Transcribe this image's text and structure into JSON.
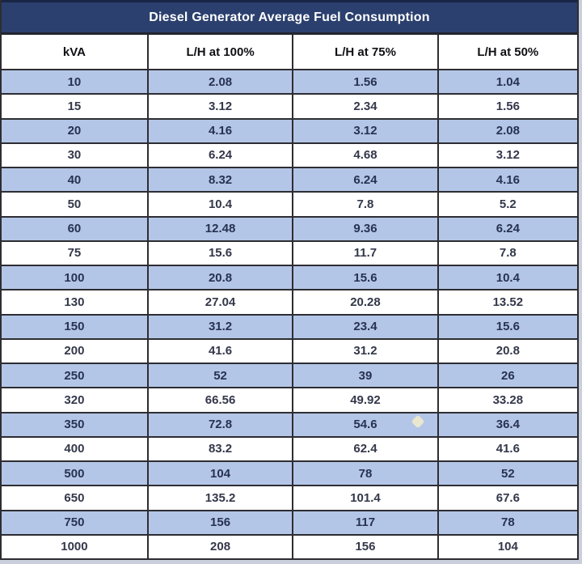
{
  "page_title": "Diesel Generator Average Fuel Consumption",
  "chart_data": {
    "type": "table",
    "title": "Diesel Generator Average Fuel Consumption",
    "columns": [
      "kVA",
      "L/H at 100%",
      "L/H at 75%",
      "L/H at 50%"
    ],
    "rows": [
      [
        "10",
        "2.08",
        "1.56",
        "1.04"
      ],
      [
        "15",
        "3.12",
        "2.34",
        "1.56"
      ],
      [
        "20",
        "4.16",
        "3.12",
        "2.08"
      ],
      [
        "30",
        "6.24",
        "4.68",
        "3.12"
      ],
      [
        "40",
        "8.32",
        "6.24",
        "4.16"
      ],
      [
        "50",
        "10.4",
        "7.8",
        "5.2"
      ],
      [
        "60",
        "12.48",
        "9.36",
        "6.24"
      ],
      [
        "75",
        "15.6",
        "11.7",
        "7.8"
      ],
      [
        "100",
        "20.8",
        "15.6",
        "10.4"
      ],
      [
        "130",
        "27.04",
        "20.28",
        "13.52"
      ],
      [
        "150",
        "31.2",
        "23.4",
        "15.6"
      ],
      [
        "200",
        "41.6",
        "31.2",
        "20.8"
      ],
      [
        "250",
        "52",
        "39",
        "26"
      ],
      [
        "320",
        "66.56",
        "49.92",
        "33.28"
      ],
      [
        "350",
        "72.8",
        "54.6",
        "36.4"
      ],
      [
        "400",
        "83.2",
        "62.4",
        "41.6"
      ],
      [
        "500",
        "104",
        "78",
        "52"
      ],
      [
        "650",
        "135.2",
        "101.4",
        "67.6"
      ],
      [
        "750",
        "156",
        "117",
        "78"
      ],
      [
        "1000",
        "208",
        "156",
        "104"
      ]
    ],
    "layout": {
      "striped": true,
      "stripe_rows": "odd_data_rows_starting_with_first",
      "legend": "none",
      "grid": "full_borders"
    }
  },
  "colors": {
    "title_band_bg": "#2b406e",
    "title_text": "#ffffff",
    "stripe_bg": "#b4c6e7",
    "row_bg": "#ffffff",
    "border": "#2d2d32",
    "header_text": "#101014",
    "data_text": "#33384a"
  }
}
